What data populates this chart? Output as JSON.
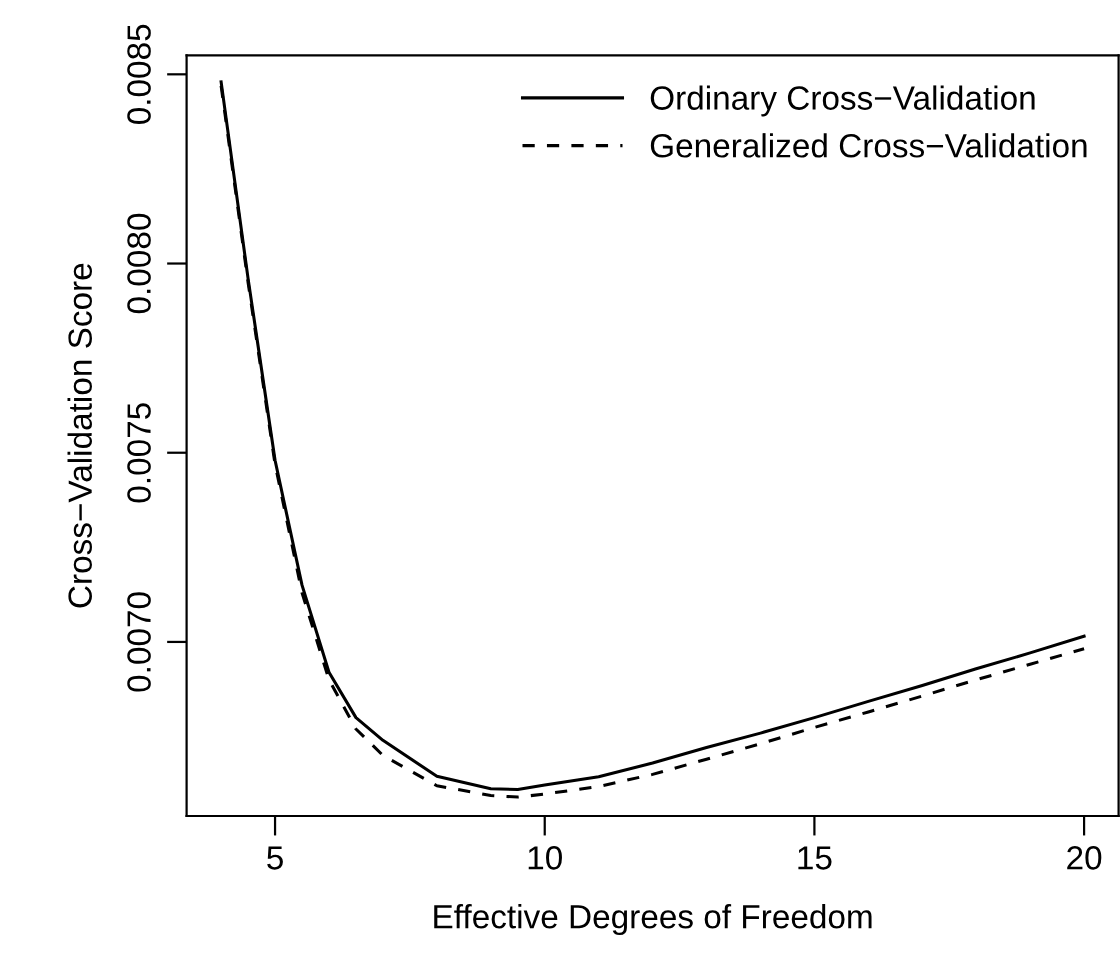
{
  "chart_data": {
    "type": "line",
    "xlabel": "Effective Degrees of Freedom",
    "ylabel": "Cross−Validation Score",
    "xlim": [
      3.36,
      20.64
    ],
    "ylim": [
      0.00654,
      0.00855
    ],
    "xticks": [
      5,
      10,
      15,
      20
    ],
    "yticks": [
      {
        "value": 0.007,
        "label": "0.0070"
      },
      {
        "value": 0.0075,
        "label": "0.0075"
      },
      {
        "value": 0.008,
        "label": "0.0080"
      },
      {
        "value": 0.0085,
        "label": "0.0085"
      }
    ],
    "x": [
      4,
      4.5,
      5,
      5.5,
      6,
      6.5,
      7,
      8,
      9,
      9.5,
      10,
      11,
      12,
      13,
      14,
      15,
      16,
      17,
      18,
      19,
      20
    ],
    "series": [
      {
        "name": "Ordinary Cross−Validation",
        "color": "#000000",
        "line_style": "solid",
        "values": [
          0.00848,
          0.00796,
          0.00748,
          0.00715,
          0.00692,
          0.0068,
          0.00674,
          0.006645,
          0.006612,
          0.00661,
          0.006622,
          0.006644,
          0.00668,
          0.006721,
          0.006759,
          0.0068,
          0.006843,
          0.006885,
          0.006929,
          0.006971,
          0.007015
        ]
      },
      {
        "name": "Generalized Cross−Validation",
        "color": "#000000",
        "line_style": "dashed",
        "values": [
          0.00847,
          0.00795,
          0.00747,
          0.00713,
          0.0069,
          0.00677,
          0.0067,
          0.00662,
          0.006594,
          0.00659,
          0.006598,
          0.006618,
          0.00665,
          0.00669,
          0.006731,
          0.006774,
          0.006815,
          0.006857,
          0.0069,
          0.006941,
          0.006982
        ]
      }
    ],
    "legend": "top right",
    "grid": false,
    "marker": "none"
  }
}
